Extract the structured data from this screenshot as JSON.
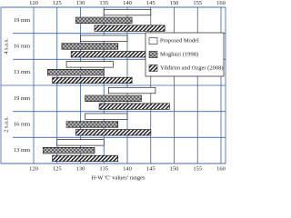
{
  "chart_data": {
    "type": "range-bar",
    "x_label": "H-W 'C' values' ranges",
    "groups": [
      "4 s.a.s.",
      "2 s.a.s."
    ],
    "categories": [
      "19 mm",
      "16 mm",
      "13 mm",
      "19 mm",
      "16 mm",
      "13 mm"
    ],
    "xlim": [
      120,
      160
    ],
    "xticks": [
      120,
      125,
      130,
      135,
      140,
      145,
      150,
      155,
      160
    ],
    "grid": true,
    "legend": "upper right",
    "series": [
      {
        "name": "Proposed Model",
        "pattern": "plain",
        "low": [
          135,
          130,
          127,
          136,
          131,
          125
        ],
        "high": [
          145,
          140,
          137,
          146,
          140,
          135
        ]
      },
      {
        "name": "Moghazi (1998)",
        "pattern": "brick",
        "low": [
          129,
          126,
          123,
          131,
          127,
          122
        ],
        "high": [
          141,
          138,
          135,
          143,
          138,
          133
        ]
      },
      {
        "name": "Yildirim and Ozger (2008)",
        "pattern": "hatch",
        "low": [
          133,
          128,
          124,
          134,
          129,
          124
        ],
        "high": [
          148,
          145,
          141,
          149,
          145,
          138
        ]
      }
    ]
  }
}
